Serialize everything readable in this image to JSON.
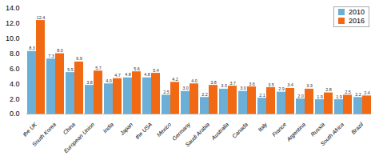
{
  "chart_data": {
    "type": "bar",
    "categories": [
      "the UK",
      "South Korea",
      "China",
      "European Union",
      "India",
      "Japan",
      "the USA",
      "Mexico",
      "Germany",
      "Saudi Arabia",
      "Australia",
      "Canada",
      "Italy",
      "France",
      "Argentina",
      "Russia",
      "South Africa",
      "Brazil"
    ],
    "series": [
      {
        "name": "2010",
        "color": "#6BAED6",
        "values": [
          8.3,
          7.3,
          5.5,
          3.8,
          4.0,
          4.8,
          4.8,
          2.5,
          3.0,
          2.2,
          3.3,
          3.0,
          2.1,
          2.9,
          2.0,
          1.9,
          1.9,
          2.2
        ],
        "value_labels": [
          "8.3",
          "7.3",
          "5.5",
          "3.8",
          "4.0",
          "4.8",
          "4.8",
          "2.5",
          "3.0",
          "2.2",
          "3.3",
          "3.0",
          "2.1",
          "2.9",
          "2.0",
          "1.9",
          "1.9",
          "2.2"
        ]
      },
      {
        "name": "2016",
        "color": "#F16913",
        "values": [
          12.4,
          8.0,
          6.9,
          5.7,
          4.7,
          5.6,
          5.4,
          4.2,
          4.0,
          3.8,
          3.7,
          3.6,
          3.5,
          3.4,
          3.3,
          2.8,
          2.5,
          2.4
        ],
        "value_labels": [
          "12.4",
          "8.0",
          "6.9",
          "5.7",
          "4.7",
          "5.6",
          "5.4",
          "4.2",
          "4.0",
          "3.8",
          "3.7",
          "3.6",
          "3.5",
          "3.4",
          "3.3",
          "2.8",
          "2.5",
          "2.4"
        ]
      }
    ],
    "ylim": [
      0,
      14.0
    ],
    "yticks": [
      {
        "value": 0,
        "label": "0.0"
      },
      {
        "value": 2,
        "label": "2.0"
      },
      {
        "value": 4,
        "label": "4.0"
      },
      {
        "value": 6,
        "label": "6.0"
      },
      {
        "value": 8,
        "label": "8.0"
      },
      {
        "value": 10,
        "label": "10.0"
      },
      {
        "value": 12,
        "label": "12.0"
      },
      {
        "value": 14,
        "label": "14.0"
      }
    ],
    "grid": false,
    "legend": "upper right",
    "data_labels": true
  }
}
